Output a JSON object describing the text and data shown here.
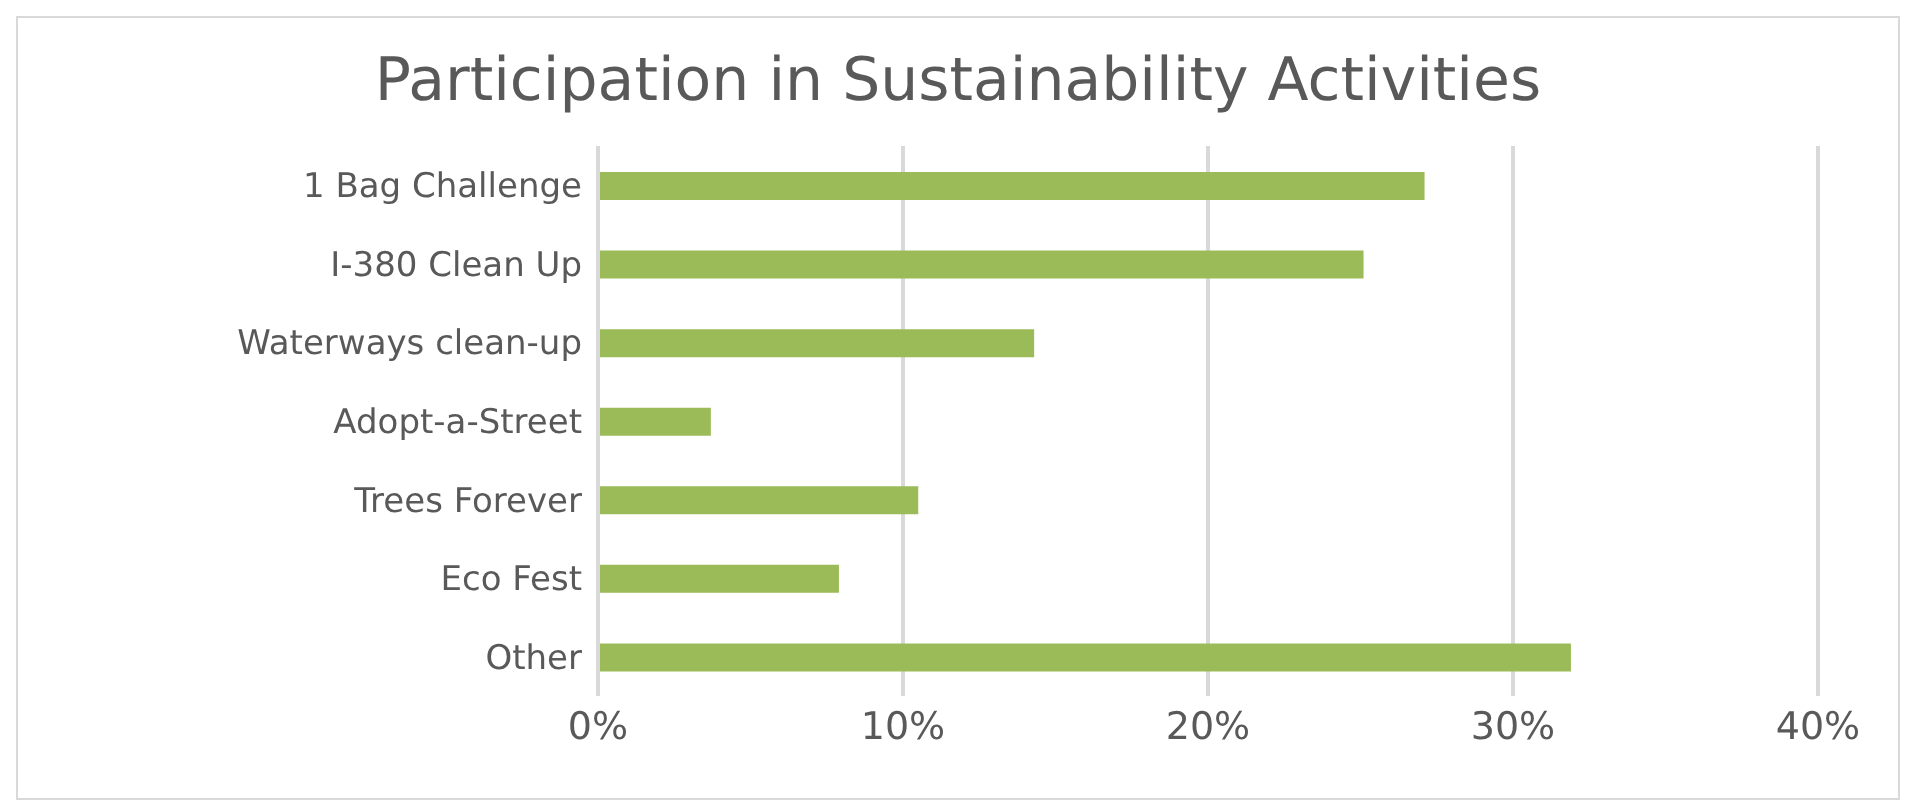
{
  "chart_data": {
    "type": "bar",
    "orientation": "horizontal",
    "title": "Participation in Sustainability Activities",
    "categories": [
      "1 Bag Challenge",
      "I-380 Clean Up",
      "Waterways clean-up",
      "Adopt-a-Street",
      "Trees Forever",
      "Eco Fest",
      "Other"
    ],
    "values": [
      27.1,
      25.1,
      14.3,
      3.7,
      10.5,
      7.9,
      31.9
    ],
    "color": "#9bbb59",
    "xlim": [
      0,
      40
    ],
    "xticks": [
      {
        "value": 0,
        "label": "0%"
      },
      {
        "value": 10,
        "label": "10%"
      },
      {
        "value": 20,
        "label": "20%"
      },
      {
        "value": 30,
        "label": "30%"
      },
      {
        "value": 40,
        "label": "40%"
      }
    ],
    "grid": "x"
  }
}
